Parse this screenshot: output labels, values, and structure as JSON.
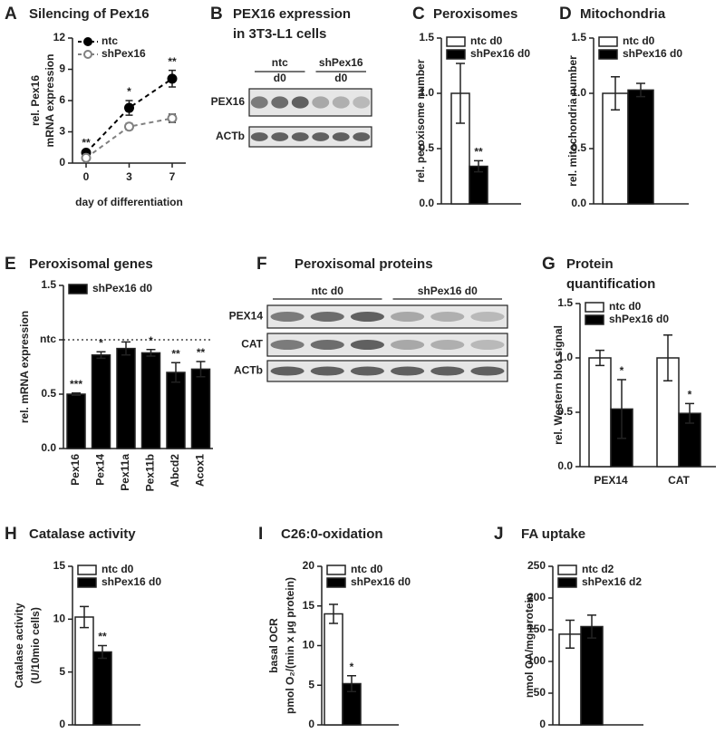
{
  "chart_data": [
    {
      "type": "line",
      "panel": "A",
      "title": "Silencing of Pex16",
      "xlabel": "day of differentiation",
      "ylabel": [
        "rel. Pex16",
        "mRNA expression"
      ],
      "categories": [
        "0",
        "3",
        "7"
      ],
      "ylim": [
        0,
        12
      ],
      "yticks": [
        0,
        3,
        6,
        9,
        12
      ],
      "legend": "upper left",
      "series": [
        {
          "name": "ntc",
          "color": "#000000",
          "values": [
            1.0,
            5.3,
            8.1
          ],
          "errors": [
            0.1,
            0.7,
            0.8
          ],
          "annotations": [
            "**",
            "*",
            "**"
          ]
        },
        {
          "name": "shPex16",
          "color": "#808080",
          "values": [
            0.5,
            3.5,
            4.3
          ],
          "errors": [
            0.1,
            0.3,
            0.4
          ]
        }
      ]
    },
    {
      "type": "blot",
      "panel": "B",
      "title": [
        "PEX16 expression",
        "in 3T3-L1 cells"
      ],
      "groups": [
        [
          "ntc",
          "d0"
        ],
        [
          "shPex16",
          "d0"
        ]
      ],
      "rows": [
        "PEX16",
        "ACTb"
      ]
    },
    {
      "type": "bar",
      "panel": "C",
      "title": "Peroxisomes",
      "ylabel": "rel. peroxisome number",
      "ylim": [
        0,
        1.5
      ],
      "yticks": [
        {
          "value": 0,
          "label": "0.0"
        },
        0.5,
        {
          "value": 1,
          "label": "1.0"
        },
        1.5
      ],
      "legend": "upper left",
      "series": [
        {
          "name": "ntc d0",
          "color": "#ffffff",
          "values": [
            1.0
          ],
          "errors": [
            0.27
          ]
        },
        {
          "name": "shPex16 d0",
          "color": "#000000",
          "values": [
            0.34
          ],
          "errors": [
            0.05
          ],
          "annotations": [
            "**"
          ]
        }
      ]
    },
    {
      "type": "bar",
      "panel": "D",
      "title": "Mitochondria",
      "ylabel": "rel. mitochondria number",
      "ylim": [
        0,
        1.5
      ],
      "yticks": [
        {
          "value": 0,
          "label": "0.0"
        },
        0.5,
        {
          "value": 1,
          "label": "1.0"
        },
        1.5
      ],
      "legend": "upper left",
      "series": [
        {
          "name": "ntc d0",
          "color": "#ffffff",
          "values": [
            1.0
          ],
          "errors": [
            0.15
          ]
        },
        {
          "name": "shPex16 d0",
          "color": "#000000",
          "values": [
            1.03
          ],
          "errors": [
            0.06
          ]
        }
      ]
    },
    {
      "type": "bar",
      "panel": "E",
      "title": "Peroxisomal genes",
      "ylabel": "rel. mRNA expression",
      "categories": [
        "Pex16",
        "Pex14",
        "Pex11a",
        "Pex11b",
        "Abcd2",
        "Acox1"
      ],
      "ylim": [
        0,
        1.5
      ],
      "yticks": [
        {
          "value": 0,
          "label": "0.0"
        },
        0.5,
        {
          "value": 1,
          "label": "ntc"
        },
        1.5
      ],
      "reference_line": 1,
      "legend": "upper left",
      "series": [
        {
          "name": "shPex16 d0",
          "color": "#000000",
          "values": [
            0.5,
            0.86,
            0.92,
            0.88,
            0.7,
            0.73
          ],
          "errors": [
            0.01,
            0.03,
            0.06,
            0.03,
            0.09,
            0.07
          ],
          "annotations": [
            "***",
            "*",
            null,
            "*",
            "**",
            "**"
          ]
        }
      ]
    },
    {
      "type": "blot",
      "panel": "F",
      "title": "Peroxisomal proteins",
      "groups": [
        "ntc d0",
        "shPex16 d0"
      ],
      "rows": [
        "PEX14",
        "CAT",
        "ACTb"
      ]
    },
    {
      "type": "bar",
      "panel": "G",
      "title": [
        "Protein",
        "quantification"
      ],
      "ylabel": "rel. Western blot signal",
      "categories": [
        "PEX14",
        "CAT"
      ],
      "ylim": [
        0,
        1.5
      ],
      "yticks": [
        {
          "value": 0,
          "label": "0.0"
        },
        0.5,
        {
          "value": 1,
          "label": "1.0"
        },
        1.5
      ],
      "legend": "upper left",
      "series": [
        {
          "name": "ntc d0",
          "color": "#ffffff",
          "values": [
            1.0,
            1.0
          ],
          "errors": [
            0.07,
            0.21
          ]
        },
        {
          "name": "shPex16 d0",
          "color": "#000000",
          "values": [
            0.53,
            0.49
          ],
          "errors": [
            0.27,
            0.09
          ],
          "annotations": [
            "*",
            "*"
          ]
        }
      ]
    },
    {
      "type": "bar",
      "panel": "H",
      "title": "Catalase activity",
      "ylabel": [
        "Catalase activity",
        "(U/10mio cells)"
      ],
      "ylim": [
        0,
        15
      ],
      "yticks": [
        0,
        5,
        10,
        15
      ],
      "legend": "upper left",
      "series": [
        {
          "name": "ntc d0",
          "color": "#ffffff",
          "values": [
            10.2
          ],
          "errors": [
            1.0
          ]
        },
        {
          "name": "shPex16 d0",
          "color": "#000000",
          "values": [
            6.9
          ],
          "errors": [
            0.6
          ],
          "annotations": [
            "**"
          ]
        }
      ]
    },
    {
      "type": "bar",
      "panel": "I",
      "title": "C26:0-oxidation",
      "ylabel": [
        "basal OCR",
        "pmol O₂/(min x µg protein)"
      ],
      "ylim": [
        0,
        20
      ],
      "yticks": [
        0,
        5,
        10,
        15,
        20
      ],
      "legend": "upper left",
      "series": [
        {
          "name": "ntc d0",
          "color": "#ffffff",
          "values": [
            14.0
          ],
          "errors": [
            1.2
          ]
        },
        {
          "name": "shPex16 d0",
          "color": "#000000",
          "values": [
            5.2
          ],
          "errors": [
            1.0
          ],
          "annotations": [
            "*"
          ]
        }
      ]
    },
    {
      "type": "bar",
      "panel": "J",
      "title": "FA uptake",
      "ylabel": "nmol OA/mg protein",
      "ylim": [
        0,
        250
      ],
      "yticks": [
        0,
        50,
        100,
        150,
        200,
        250
      ],
      "legend": "upper left",
      "series": [
        {
          "name": "ntc d2",
          "color": "#ffffff",
          "values": [
            143
          ],
          "errors": [
            22
          ]
        },
        {
          "name": "shPex16 d2",
          "color": "#000000",
          "values": [
            155
          ],
          "errors": [
            18
          ]
        }
      ]
    }
  ]
}
